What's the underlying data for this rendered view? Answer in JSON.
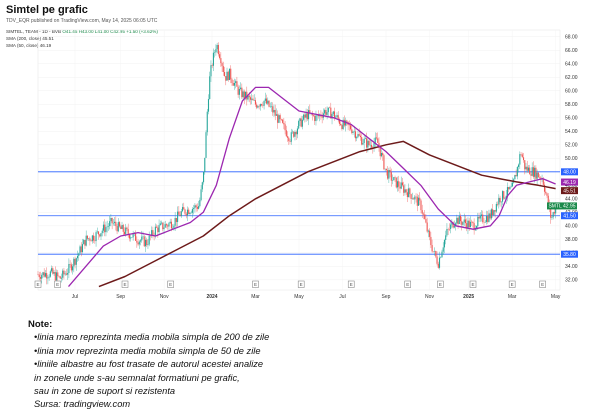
{
  "header": {
    "title": "Simtel pe grafic",
    "subtitle": "TDV_EQR published on TradingView.com, May 14, 2025 06:05 UTC"
  },
  "legend": {
    "l1_label": "SIMTEL, TEAM - 1D - BVB",
    "l1_values": "O41.45 H43.00 L41.00 C42.95 +1.50 (+3.62%)",
    "l2_label": "SMA (200, close)",
    "l2_value": "45.51",
    "l3_label": "SMA (50, close)",
    "l3_value": "46.19"
  },
  "note": {
    "title": "Note:",
    "line1": "•linia maro reprezinta media mobila simpla de 200 de zile",
    "line2": "•linia mov reprezinta media mobila simpla de 50 de zile",
    "line3": "•liniile albastre au fost trasate de autorul acestei analize",
    "line4": "in zonele unde s-au semnalat formatiuni pe grafic,",
    "line5": "sau in zone de suport si rezistenta",
    "line6": "Sursa: tradingview.com"
  },
  "colors": {
    "up": "#26a69a",
    "down": "#ef5350",
    "sma50": "#9c27b0",
    "sma200": "#6d1a1a",
    "hline": "#2962ff",
    "last": "#1b8a4a"
  },
  "chart_data": {
    "type": "candlestick",
    "title": "Simtel pe grafic",
    "ylim": [
      30.5,
      69.0
    ],
    "y_ticks": [
      "32.00",
      "34.00",
      "36.00",
      "38.00",
      "40.00",
      "42.00",
      "44.00",
      "46.00",
      "48.00",
      "50.00",
      "52.00",
      "54.00",
      "56.00",
      "58.00",
      "60.00",
      "62.00",
      "64.00",
      "66.00",
      "68.00"
    ],
    "x_ticks": [
      {
        "label": "Jul",
        "t": 0.085
      },
      {
        "label": "Sep",
        "t": 0.19
      },
      {
        "label": "Nov",
        "t": 0.29
      },
      {
        "label": "2024",
        "t": 0.4
      },
      {
        "label": "Mar",
        "t": 0.5
      },
      {
        "label": "May",
        "t": 0.6
      },
      {
        "label": "Jul",
        "t": 0.7
      },
      {
        "label": "Sep",
        "t": 0.8
      },
      {
        "label": "Nov",
        "t": 0.9
      },
      {
        "label": "2025",
        "t": 0.99
      },
      {
        "label": "Mar",
        "t": 1.09
      },
      {
        "label": "May",
        "t": 1.19
      }
    ],
    "event_markers": [
      0.0,
      0.045,
      0.2,
      0.305,
      0.5,
      0.605,
      0.72,
      0.85,
      0.925,
      1.0,
      1.09,
      1.16
    ],
    "horizontal_lines": [
      {
        "value": 48.0,
        "label": "48.00"
      },
      {
        "value": 41.5,
        "label": "41.50"
      },
      {
        "value": 35.8,
        "label": "35.80"
      }
    ],
    "price_labels": [
      {
        "value": 46.19,
        "label": "46.19",
        "color": "#9c27b0"
      },
      {
        "value": 45.51,
        "label": "45.51",
        "color": "#6d1a1a"
      },
      {
        "value": 42.95,
        "label": "SMTL 42.95",
        "color": "#1b8a4a"
      }
    ],
    "price_path": [
      [
        0.0,
        32.8
      ],
      [
        0.03,
        33.0
      ],
      [
        0.05,
        32.2
      ],
      [
        0.07,
        33.5
      ],
      [
        0.09,
        35.5
      ],
      [
        0.11,
        38.0
      ],
      [
        0.13,
        38.5
      ],
      [
        0.15,
        39.5
      ],
      [
        0.17,
        40.5
      ],
      [
        0.19,
        39.5
      ],
      [
        0.21,
        38.8
      ],
      [
        0.23,
        38.0
      ],
      [
        0.25,
        37.5
      ],
      [
        0.27,
        39.5
      ],
      [
        0.29,
        40.0
      ],
      [
        0.31,
        40.5
      ],
      [
        0.33,
        42.0
      ],
      [
        0.35,
        42.5
      ],
      [
        0.37,
        43.0
      ],
      [
        0.38,
        47.0
      ],
      [
        0.385,
        52.0
      ],
      [
        0.39,
        58.0
      ],
      [
        0.395,
        62.0
      ],
      [
        0.4,
        64.0
      ],
      [
        0.41,
        67.0
      ],
      [
        0.42,
        65.0
      ],
      [
        0.43,
        62.0
      ],
      [
        0.44,
        62.5
      ],
      [
        0.46,
        60.0
      ],
      [
        0.48,
        59.0
      ],
      [
        0.5,
        58.0
      ],
      [
        0.52,
        58.5
      ],
      [
        0.54,
        57.0
      ],
      [
        0.56,
        55.0
      ],
      [
        0.58,
        53.0
      ],
      [
        0.6,
        55.0
      ],
      [
        0.62,
        56.5
      ],
      [
        0.64,
        56.0
      ],
      [
        0.66,
        57.0
      ],
      [
        0.68,
        56.5
      ],
      [
        0.7,
        55.0
      ],
      [
        0.72,
        54.5
      ],
      [
        0.74,
        53.0
      ],
      [
        0.76,
        52.0
      ],
      [
        0.78,
        52.5
      ],
      [
        0.8,
        48.0
      ],
      [
        0.82,
        46.5
      ],
      [
        0.84,
        45.5
      ],
      [
        0.86,
        44.5
      ],
      [
        0.88,
        43.0
      ],
      [
        0.9,
        38.0
      ],
      [
        0.91,
        36.0
      ],
      [
        0.92,
        34.5
      ],
      [
        0.93,
        37.0
      ],
      [
        0.94,
        39.0
      ],
      [
        0.96,
        41.0
      ],
      [
        0.98,
        40.5
      ],
      [
        1.0,
        40.0
      ],
      [
        1.02,
        41.0
      ],
      [
        1.04,
        41.5
      ],
      [
        1.06,
        44.0
      ],
      [
        1.08,
        45.0
      ],
      [
        1.09,
        45.5
      ],
      [
        1.1,
        48.0
      ],
      [
        1.11,
        51.0
      ],
      [
        1.12,
        48.5
      ],
      [
        1.14,
        48.0
      ],
      [
        1.16,
        47.0
      ],
      [
        1.17,
        44.0
      ],
      [
        1.18,
        41.0
      ],
      [
        1.19,
        42.95
      ]
    ],
    "sma50": [
      [
        0.07,
        31.0
      ],
      [
        0.11,
        34.0
      ],
      [
        0.15,
        37.0
      ],
      [
        0.19,
        38.5
      ],
      [
        0.23,
        39.0
      ],
      [
        0.27,
        38.5
      ],
      [
        0.31,
        39.5
      ],
      [
        0.35,
        40.5
      ],
      [
        0.38,
        42.0
      ],
      [
        0.41,
        46.0
      ],
      [
        0.44,
        53.0
      ],
      [
        0.47,
        58.5
      ],
      [
        0.5,
        60.5
      ],
      [
        0.53,
        60.5
      ],
      [
        0.56,
        59.0
      ],
      [
        0.6,
        57.0
      ],
      [
        0.64,
        56.5
      ],
      [
        0.68,
        56.0
      ],
      [
        0.72,
        55.0
      ],
      [
        0.76,
        53.0
      ],
      [
        0.8,
        51.0
      ],
      [
        0.84,
        48.5
      ],
      [
        0.88,
        46.0
      ],
      [
        0.92,
        42.5
      ],
      [
        0.96,
        40.0
      ],
      [
        1.0,
        39.5
      ],
      [
        1.04,
        40.0
      ],
      [
        1.06,
        41.5
      ],
      [
        1.08,
        44.5
      ],
      [
        1.1,
        46.0
      ],
      [
        1.13,
        46.5
      ],
      [
        1.16,
        47.0
      ],
      [
        1.19,
        46.19
      ]
    ],
    "sma200": [
      [
        0.14,
        31.0
      ],
      [
        0.2,
        32.5
      ],
      [
        0.26,
        34.5
      ],
      [
        0.32,
        36.5
      ],
      [
        0.38,
        38.5
      ],
      [
        0.44,
        41.5
      ],
      [
        0.5,
        44.0
      ],
      [
        0.56,
        46.0
      ],
      [
        0.62,
        48.0
      ],
      [
        0.68,
        49.5
      ],
      [
        0.74,
        51.0
      ],
      [
        0.8,
        52.0
      ],
      [
        0.84,
        52.5
      ],
      [
        0.87,
        51.5
      ],
      [
        0.9,
        50.5
      ],
      [
        0.94,
        49.5
      ],
      [
        0.98,
        48.5
      ],
      [
        1.02,
        47.5
      ],
      [
        1.06,
        47.0
      ],
      [
        1.1,
        46.5
      ],
      [
        1.15,
        46.0
      ],
      [
        1.19,
        45.51
      ]
    ]
  }
}
